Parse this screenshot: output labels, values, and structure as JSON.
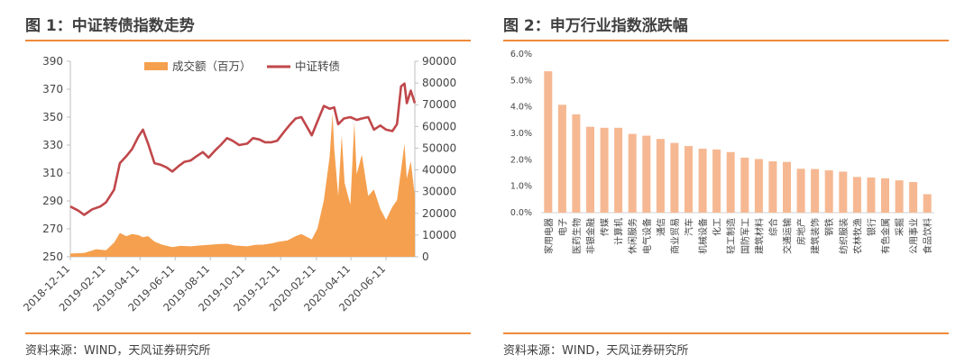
{
  "colors": {
    "accent": "#f08a3a",
    "bar": "#f6b892",
    "area": "#f5a04f",
    "line": "#c0474a"
  },
  "left": {
    "title": "图 1：中证转债指数走势",
    "source": "资料来源：WIND，天风证券研究所"
  },
  "right": {
    "title": "图 2：申万行业指数涨跌幅",
    "source": "资料来源：WIND，天风证券研究所"
  },
  "chart_data": [
    {
      "type": "line",
      "title": "图 1：中证转债指数走势",
      "legend": [
        "成交额（百万）",
        "中证转债"
      ],
      "legend_position": "top",
      "x_ticks": [
        "2018-12-11",
        "2019-02-11",
        "2019-04-11",
        "2019-06-11",
        "2019-08-11",
        "2019-10-11",
        "2019-12-11",
        "2020-02-11",
        "2020-04-11",
        "2020-06-11"
      ],
      "y_left": {
        "range": [
          250,
          390
        ],
        "ticks": [
          250,
          270,
          290,
          310,
          330,
          350,
          370,
          390
        ]
      },
      "y_right": {
        "range": [
          0,
          90000
        ],
        "ticks": [
          0,
          10000,
          20000,
          30000,
          40000,
          50000,
          60000,
          70000,
          80000,
          90000
        ]
      },
      "x_range": [
        "2018-12-11",
        "2020-07-31"
      ],
      "series": [
        {
          "name": "中证转债",
          "axis": "left",
          "kind": "line",
          "points": [
            [
              "2018-12-11",
              286
            ],
            [
              "2018-12-25",
              283
            ],
            [
              "2019-01-04",
              280
            ],
            [
              "2019-01-18",
              284
            ],
            [
              "2019-02-01",
              286
            ],
            [
              "2019-02-11",
              289
            ],
            [
              "2019-02-25",
              298
            ],
            [
              "2019-03-07",
              317
            ],
            [
              "2019-03-18",
              322
            ],
            [
              "2019-03-28",
              327
            ],
            [
              "2019-04-08",
              336
            ],
            [
              "2019-04-16",
              341
            ],
            [
              "2019-04-25",
              331
            ],
            [
              "2019-05-06",
              317
            ],
            [
              "2019-05-16",
              316
            ],
            [
              "2019-05-27",
              314
            ],
            [
              "2019-06-06",
              311
            ],
            [
              "2019-06-17",
              315
            ],
            [
              "2019-06-27",
              318
            ],
            [
              "2019-07-08",
              319
            ],
            [
              "2019-07-18",
              322
            ],
            [
              "2019-07-29",
              325
            ],
            [
              "2019-08-08",
              321
            ],
            [
              "2019-08-19",
              326
            ],
            [
              "2019-08-29",
              330
            ],
            [
              "2019-09-09",
              335
            ],
            [
              "2019-09-19",
              333
            ],
            [
              "2019-09-30",
              330
            ],
            [
              "2019-10-14",
              331
            ],
            [
              "2019-10-24",
              335
            ],
            [
              "2019-11-04",
              334
            ],
            [
              "2019-11-14",
              332
            ],
            [
              "2019-11-25",
              332
            ],
            [
              "2019-12-05",
              333
            ],
            [
              "2019-12-16",
              339
            ],
            [
              "2019-12-26",
              344
            ],
            [
              "2020-01-06",
              349
            ],
            [
              "2020-01-16",
              350
            ],
            [
              "2020-02-03",
              337
            ],
            [
              "2020-02-13",
              347
            ],
            [
              "2020-02-24",
              358
            ],
            [
              "2020-03-05",
              356
            ],
            [
              "2020-03-13",
              357
            ],
            [
              "2020-03-20",
              345
            ],
            [
              "2020-03-30",
              349
            ],
            [
              "2020-04-10",
              350
            ],
            [
              "2020-04-21",
              348
            ],
            [
              "2020-04-30",
              349
            ],
            [
              "2020-05-11",
              350
            ],
            [
              "2020-05-21",
              341
            ],
            [
              "2020-06-01",
              344
            ],
            [
              "2020-06-11",
              341
            ],
            [
              "2020-06-22",
              340
            ],
            [
              "2020-06-30",
              345
            ],
            [
              "2020-07-07",
              372
            ],
            [
              "2020-07-13",
              374
            ],
            [
              "2020-07-17",
              360
            ],
            [
              "2020-07-24",
              369
            ],
            [
              "2020-07-31",
              360
            ]
          ]
        },
        {
          "name": "成交额（百万）",
          "axis": "right",
          "kind": "area",
          "points": [
            [
              "2018-12-11",
              1500
            ],
            [
              "2019-01-04",
              1800
            ],
            [
              "2019-01-25",
              3500
            ],
            [
              "2019-02-11",
              3000
            ],
            [
              "2019-02-25",
              6500
            ],
            [
              "2019-03-07",
              11000
            ],
            [
              "2019-03-18",
              9500
            ],
            [
              "2019-03-28",
              10500
            ],
            [
              "2019-04-08",
              10000
            ],
            [
              "2019-04-16",
              9000
            ],
            [
              "2019-04-25",
              9500
            ],
            [
              "2019-05-06",
              7000
            ],
            [
              "2019-05-20",
              5500
            ],
            [
              "2019-06-06",
              4500
            ],
            [
              "2019-06-20",
              5000
            ],
            [
              "2019-07-08",
              4800
            ],
            [
              "2019-07-22",
              5200
            ],
            [
              "2019-08-08",
              5500
            ],
            [
              "2019-08-22",
              5800
            ],
            [
              "2019-09-09",
              6000
            ],
            [
              "2019-09-23",
              5200
            ],
            [
              "2019-10-14",
              4800
            ],
            [
              "2019-10-28",
              5500
            ],
            [
              "2019-11-11",
              5600
            ],
            [
              "2019-11-25",
              6200
            ],
            [
              "2019-12-09",
              7000
            ],
            [
              "2019-12-23",
              7500
            ],
            [
              "2020-01-06",
              9500
            ],
            [
              "2020-01-16",
              10500
            ],
            [
              "2020-02-03",
              8000
            ],
            [
              "2020-02-13",
              13000
            ],
            [
              "2020-02-24",
              26000
            ],
            [
              "2020-03-05",
              46000
            ],
            [
              "2020-03-10",
              66000
            ],
            [
              "2020-03-13",
              50000
            ],
            [
              "2020-03-20",
              28000
            ],
            [
              "2020-03-26",
              56000
            ],
            [
              "2020-03-31",
              34000
            ],
            [
              "2020-04-10",
              24000
            ],
            [
              "2020-04-17",
              62000
            ],
            [
              "2020-04-21",
              38000
            ],
            [
              "2020-04-30",
              47000
            ],
            [
              "2020-05-11",
              28000
            ],
            [
              "2020-05-21",
              31000
            ],
            [
              "2020-06-01",
              22000
            ],
            [
              "2020-06-11",
              17000
            ],
            [
              "2020-06-22",
              23000
            ],
            [
              "2020-06-30",
              26000
            ],
            [
              "2020-07-07",
              40000
            ],
            [
              "2020-07-13",
              52000
            ],
            [
              "2020-07-17",
              36000
            ],
            [
              "2020-07-24",
              44000
            ],
            [
              "2020-07-31",
              28000
            ]
          ]
        }
      ]
    },
    {
      "type": "bar",
      "title": "图 2：申万行业指数涨跌幅",
      "categories": [
        "家用电器",
        "电子",
        "医药生物",
        "非银金融",
        "传媒",
        "计算机",
        "休闲服务",
        "电气设备",
        "通信",
        "商业贸易",
        "汽车",
        "机械设备",
        "化工",
        "轻工制造",
        "国防军工",
        "建筑材料",
        "综合",
        "交通运输",
        "房地产",
        "建筑装饰",
        "钢铁",
        "纺织服装",
        "农林牧渔",
        "银行",
        "有色金属",
        "采掘",
        "公用事业",
        "食品饮料"
      ],
      "values": [
        5.35,
        4.08,
        3.72,
        3.25,
        3.21,
        3.21,
        2.98,
        2.91,
        2.79,
        2.64,
        2.52,
        2.42,
        2.39,
        2.29,
        2.08,
        2.03,
        1.94,
        1.92,
        1.66,
        1.65,
        1.6,
        1.55,
        1.35,
        1.33,
        1.3,
        1.22,
        1.16,
        0.7
      ],
      "y_ticks": [
        "0.0%",
        "1.0%",
        "2.0%",
        "3.0%",
        "4.0%",
        "5.0%",
        "6.0%"
      ],
      "ylim": [
        0,
        6
      ],
      "grid": false
    }
  ]
}
